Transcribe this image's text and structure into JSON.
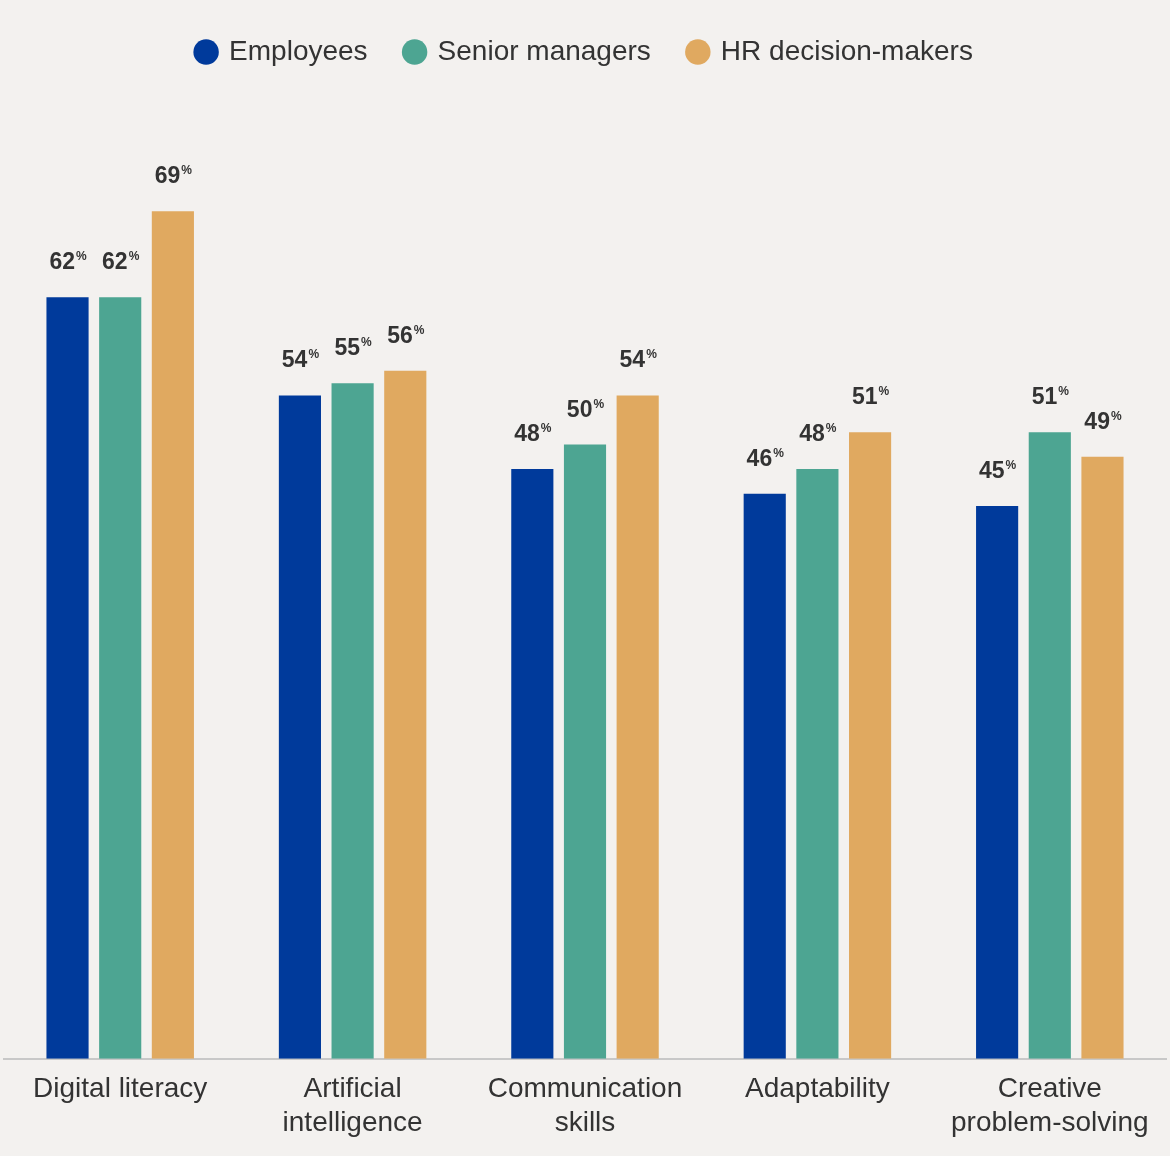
{
  "chart_data": {
    "type": "bar",
    "categories": [
      "Digital literacy",
      "Artificial intelligence",
      "Communication skills",
      "Adaptability",
      "Creative problem-solving"
    ],
    "series": [
      {
        "name": "Employees",
        "color": "#003a9b",
        "values": [
          62,
          54,
          48,
          46,
          45
        ],
        "value_labels": [
          "62%",
          "54%",
          "48%",
          "46%",
          "45%"
        ]
      },
      {
        "name": "Senior managers",
        "color": "#4da592",
        "values": [
          62,
          55,
          50,
          48,
          51
        ],
        "value_labels": [
          "62%",
          "55%",
          "50%",
          "48%",
          "51%"
        ]
      },
      {
        "name": "HR decision-makers",
        "color": "#e0a960",
        "values": [
          69,
          56,
          54,
          51,
          49
        ],
        "value_labels": [
          "69%",
          "56%",
          "54%",
          "51%",
          "49%"
        ]
      }
    ],
    "tick_labels": "x",
    "legend": "top"
  }
}
